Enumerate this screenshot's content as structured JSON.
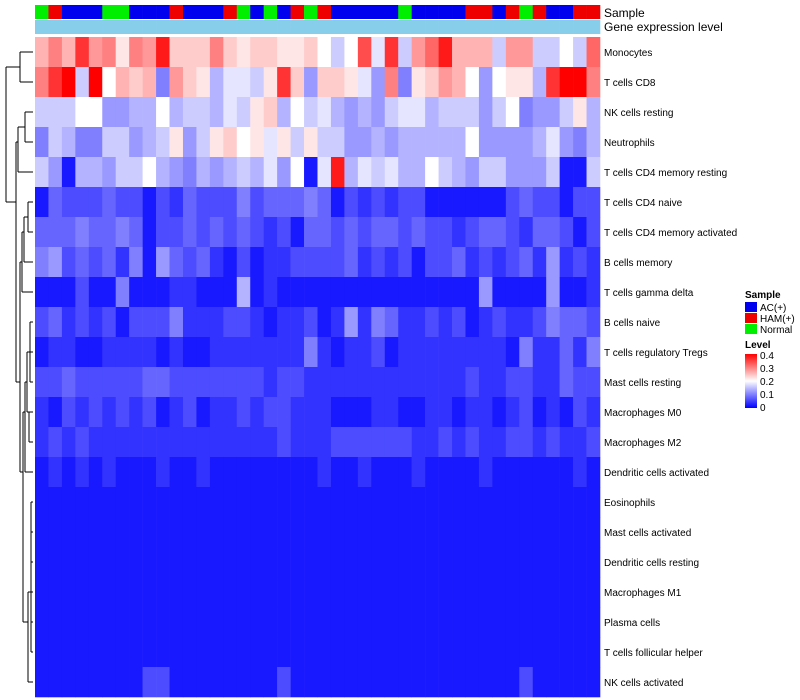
{
  "chart_data": {
    "type": "heatmap",
    "annotations": {
      "sample_label": "Sample",
      "gene_label": "Gene expression level"
    },
    "sample_groups": [
      "Normal",
      "HAM",
      "AC",
      "AC",
      "AC",
      "Normal",
      "Normal",
      "AC",
      "AC",
      "AC",
      "HAM",
      "AC",
      "AC",
      "AC",
      "HAM",
      "Normal",
      "AC",
      "Normal",
      "AC",
      "HAM",
      "Normal",
      "HAM",
      "AC",
      "AC",
      "AC",
      "AC",
      "AC",
      "Normal",
      "AC",
      "AC",
      "AC",
      "AC",
      "HAM",
      "HAM",
      "AC",
      "HAM",
      "Normal",
      "HAM",
      "AC",
      "AC",
      "HAM",
      "HAM"
    ],
    "gene_expression_level": [
      0.05,
      0.05,
      0.05,
      0.05,
      0.05,
      0.05,
      0.05,
      0.05,
      0.05,
      0.05,
      0.05,
      0.05,
      0.05,
      0.05,
      0.05,
      0.05,
      0.05,
      0.05,
      0.05,
      0.05,
      0.05,
      0.05,
      0.05,
      0.05,
      0.05,
      0.05,
      0.05,
      0.05,
      0.05,
      0.05,
      0.05,
      0.05,
      0.05,
      0.05,
      0.05,
      0.05,
      0.05,
      0.05,
      0.05,
      0.05,
      0.05,
      0.05
    ],
    "rows": [
      {
        "name": "Monocytes",
        "values": [
          0.26,
          0.3,
          0.26,
          0.36,
          0.28,
          0.3,
          0.22,
          0.3,
          0.28,
          0.38,
          0.24,
          0.24,
          0.24,
          0.3,
          0.24,
          0.22,
          0.24,
          0.24,
          0.22,
          0.22,
          0.24,
          0.2,
          0.16,
          0.2,
          0.34,
          0.18,
          0.36,
          0.16,
          0.28,
          0.32,
          0.38,
          0.26,
          0.26,
          0.26,
          0.16,
          0.28,
          0.28,
          0.16,
          0.16,
          0.2,
          0.16,
          0.32
        ]
      },
      {
        "name": "T cells CD8",
        "values": [
          0.3,
          0.36,
          0.4,
          0.16,
          0.4,
          0.2,
          0.26,
          0.24,
          0.26,
          0.1,
          0.28,
          0.24,
          0.22,
          0.14,
          0.18,
          0.18,
          0.16,
          0.22,
          0.36,
          0.24,
          0.12,
          0.24,
          0.24,
          0.22,
          0.18,
          0.12,
          0.3,
          0.1,
          0.22,
          0.24,
          0.28,
          0.26,
          0.2,
          0.12,
          0.2,
          0.22,
          0.22,
          0.14,
          0.36,
          0.4,
          0.4,
          0.3
        ]
      },
      {
        "name": "NK cells resting",
        "values": [
          0.16,
          0.16,
          0.16,
          0.2,
          0.2,
          0.12,
          0.12,
          0.14,
          0.14,
          0.2,
          0.14,
          0.16,
          0.16,
          0.14,
          0.18,
          0.16,
          0.22,
          0.24,
          0.14,
          0.2,
          0.16,
          0.18,
          0.14,
          0.12,
          0.14,
          0.12,
          0.16,
          0.18,
          0.18,
          0.14,
          0.16,
          0.16,
          0.16,
          0.12,
          0.16,
          0.2,
          0.1,
          0.12,
          0.12,
          0.16,
          0.22,
          0.14
        ]
      },
      {
        "name": "Neutrophils",
        "values": [
          0.1,
          0.16,
          0.14,
          0.1,
          0.1,
          0.16,
          0.16,
          0.12,
          0.14,
          0.16,
          0.22,
          0.12,
          0.16,
          0.22,
          0.24,
          0.2,
          0.22,
          0.18,
          0.22,
          0.16,
          0.22,
          0.16,
          0.16,
          0.12,
          0.12,
          0.14,
          0.12,
          0.14,
          0.14,
          0.14,
          0.14,
          0.14,
          0.2,
          0.12,
          0.12,
          0.12,
          0.12,
          0.14,
          0.18,
          0.12,
          0.1,
          0.14
        ]
      },
      {
        "name": "T cells CD4 memory resting",
        "values": [
          0.16,
          0.12,
          0.02,
          0.14,
          0.14,
          0.12,
          0.16,
          0.16,
          0.2,
          0.14,
          0.12,
          0.1,
          0.14,
          0.12,
          0.14,
          0.16,
          0.14,
          0.18,
          0.12,
          0.2,
          0.02,
          0.18,
          0.38,
          0.14,
          0.18,
          0.16,
          0.18,
          0.14,
          0.14,
          0.2,
          0.16,
          0.14,
          0.12,
          0.16,
          0.16,
          0.12,
          0.12,
          0.12,
          0.16,
          0.02,
          0.02,
          0.16
        ]
      },
      {
        "name": "T cells CD4 naive",
        "values": [
          0.02,
          0.08,
          0.06,
          0.06,
          0.06,
          0.08,
          0.06,
          0.06,
          0.02,
          0.06,
          0.04,
          0.08,
          0.06,
          0.06,
          0.06,
          0.1,
          0.06,
          0.08,
          0.08,
          0.08,
          0.1,
          0.08,
          0.02,
          0.06,
          0.04,
          0.06,
          0.04,
          0.06,
          0.06,
          0.02,
          0.02,
          0.02,
          0.02,
          0.02,
          0.02,
          0.06,
          0.08,
          0.06,
          0.06,
          0.02,
          0.06,
          0.06
        ]
      },
      {
        "name": "T cells CD4 memory activated",
        "values": [
          0.08,
          0.08,
          0.08,
          0.1,
          0.08,
          0.08,
          0.1,
          0.08,
          0.02,
          0.06,
          0.06,
          0.08,
          0.06,
          0.08,
          0.06,
          0.08,
          0.06,
          0.04,
          0.06,
          0.02,
          0.08,
          0.08,
          0.06,
          0.08,
          0.06,
          0.08,
          0.08,
          0.06,
          0.08,
          0.06,
          0.06,
          0.04,
          0.06,
          0.08,
          0.08,
          0.06,
          0.04,
          0.08,
          0.08,
          0.06,
          0.02,
          0.06
        ]
      },
      {
        "name": "B cells memory",
        "values": [
          0.1,
          0.12,
          0.06,
          0.08,
          0.06,
          0.08,
          0.04,
          0.1,
          0.02,
          0.12,
          0.08,
          0.06,
          0.08,
          0.04,
          0.02,
          0.06,
          0.02,
          0.04,
          0.04,
          0.06,
          0.06,
          0.06,
          0.06,
          0.08,
          0.04,
          0.06,
          0.04,
          0.06,
          0.02,
          0.06,
          0.06,
          0.08,
          0.04,
          0.06,
          0.04,
          0.06,
          0.08,
          0.04,
          0.12,
          0.04,
          0.06,
          0.04
        ]
      },
      {
        "name": "T cells gamma delta",
        "values": [
          0.02,
          0.02,
          0.02,
          0.06,
          0.02,
          0.02,
          0.1,
          0.02,
          0.02,
          0.02,
          0.04,
          0.04,
          0.02,
          0.02,
          0.02,
          0.14,
          0.02,
          0.04,
          0.02,
          0.02,
          0.02,
          0.02,
          0.02,
          0.02,
          0.02,
          0.02,
          0.02,
          0.02,
          0.02,
          0.02,
          0.02,
          0.02,
          0.02,
          0.12,
          0.02,
          0.02,
          0.02,
          0.02,
          0.12,
          0.02,
          0.02,
          0.04
        ]
      },
      {
        "name": "B cells naive",
        "values": [
          0.06,
          0.08,
          0.04,
          0.06,
          0.04,
          0.06,
          0.02,
          0.06,
          0.06,
          0.06,
          0.1,
          0.04,
          0.04,
          0.04,
          0.06,
          0.06,
          0.04,
          0.02,
          0.04,
          0.04,
          0.06,
          0.02,
          0.04,
          0.12,
          0.04,
          0.1,
          0.08,
          0.04,
          0.04,
          0.06,
          0.04,
          0.06,
          0.02,
          0.04,
          0.06,
          0.04,
          0.04,
          0.06,
          0.1,
          0.08,
          0.08,
          0.06
        ]
      },
      {
        "name": "T cells regulatory  Tregs",
        "values": [
          0.02,
          0.04,
          0.04,
          0.02,
          0.02,
          0.04,
          0.04,
          0.04,
          0.04,
          0.02,
          0.04,
          0.02,
          0.02,
          0.04,
          0.04,
          0.04,
          0.04,
          0.04,
          0.04,
          0.04,
          0.1,
          0.04,
          0.02,
          0.04,
          0.04,
          0.06,
          0.02,
          0.04,
          0.04,
          0.04,
          0.04,
          0.04,
          0.04,
          0.04,
          0.04,
          0.02,
          0.1,
          0.04,
          0.04,
          0.08,
          0.04,
          0.1
        ]
      },
      {
        "name": "Mast cells resting",
        "values": [
          0.06,
          0.06,
          0.08,
          0.06,
          0.06,
          0.06,
          0.06,
          0.06,
          0.08,
          0.08,
          0.06,
          0.06,
          0.06,
          0.06,
          0.06,
          0.06,
          0.06,
          0.04,
          0.06,
          0.06,
          0.04,
          0.04,
          0.04,
          0.04,
          0.04,
          0.04,
          0.04,
          0.04,
          0.04,
          0.04,
          0.04,
          0.04,
          0.06,
          0.04,
          0.04,
          0.06,
          0.06,
          0.04,
          0.04,
          0.08,
          0.06,
          0.06
        ]
      },
      {
        "name": "Macrophages M0",
        "values": [
          0.04,
          0.02,
          0.06,
          0.04,
          0.06,
          0.04,
          0.06,
          0.04,
          0.06,
          0.02,
          0.04,
          0.06,
          0.02,
          0.04,
          0.04,
          0.06,
          0.04,
          0.06,
          0.06,
          0.04,
          0.04,
          0.04,
          0.02,
          0.02,
          0.02,
          0.04,
          0.04,
          0.02,
          0.02,
          0.04,
          0.04,
          0.02,
          0.04,
          0.04,
          0.02,
          0.04,
          0.06,
          0.02,
          0.04,
          0.02,
          0.06,
          0.04
        ]
      },
      {
        "name": "Macrophages M2",
        "values": [
          0.04,
          0.06,
          0.04,
          0.06,
          0.04,
          0.04,
          0.04,
          0.04,
          0.04,
          0.04,
          0.04,
          0.04,
          0.04,
          0.04,
          0.04,
          0.04,
          0.04,
          0.04,
          0.06,
          0.04,
          0.04,
          0.04,
          0.06,
          0.06,
          0.06,
          0.06,
          0.06,
          0.06,
          0.04,
          0.04,
          0.06,
          0.04,
          0.06,
          0.04,
          0.04,
          0.06,
          0.06,
          0.04,
          0.06,
          0.04,
          0.04,
          0.06
        ]
      },
      {
        "name": "Dendritic cells activated",
        "values": [
          0.02,
          0.04,
          0.02,
          0.04,
          0.02,
          0.04,
          0.02,
          0.02,
          0.02,
          0.04,
          0.02,
          0.02,
          0.04,
          0.02,
          0.02,
          0.02,
          0.02,
          0.02,
          0.02,
          0.02,
          0.02,
          0.04,
          0.02,
          0.02,
          0.04,
          0.02,
          0.02,
          0.02,
          0.04,
          0.02,
          0.02,
          0.02,
          0.02,
          0.04,
          0.02,
          0.02,
          0.02,
          0.02,
          0.02,
          0.02,
          0.04,
          0.02
        ]
      },
      {
        "name": "Eosinophils",
        "values": [
          0.02,
          0.02,
          0.02,
          0.02,
          0.02,
          0.02,
          0.02,
          0.02,
          0.02,
          0.02,
          0.02,
          0.02,
          0.02,
          0.02,
          0.02,
          0.02,
          0.02,
          0.02,
          0.02,
          0.02,
          0.02,
          0.02,
          0.02,
          0.02,
          0.02,
          0.02,
          0.02,
          0.02,
          0.02,
          0.02,
          0.02,
          0.02,
          0.02,
          0.02,
          0.02,
          0.02,
          0.02,
          0.02,
          0.02,
          0.02,
          0.02,
          0.02
        ]
      },
      {
        "name": "Mast cells activated",
        "values": [
          0.02,
          0.02,
          0.02,
          0.02,
          0.02,
          0.02,
          0.02,
          0.02,
          0.02,
          0.02,
          0.02,
          0.02,
          0.02,
          0.02,
          0.02,
          0.02,
          0.02,
          0.02,
          0.02,
          0.02,
          0.02,
          0.02,
          0.02,
          0.02,
          0.02,
          0.02,
          0.02,
          0.02,
          0.02,
          0.02,
          0.02,
          0.02,
          0.02,
          0.02,
          0.02,
          0.02,
          0.02,
          0.02,
          0.02,
          0.02,
          0.02,
          0.02
        ]
      },
      {
        "name": "Dendritic cells resting",
        "values": [
          0.02,
          0.02,
          0.02,
          0.02,
          0.02,
          0.02,
          0.02,
          0.02,
          0.02,
          0.02,
          0.02,
          0.02,
          0.02,
          0.02,
          0.02,
          0.02,
          0.02,
          0.02,
          0.02,
          0.02,
          0.02,
          0.02,
          0.02,
          0.02,
          0.02,
          0.02,
          0.02,
          0.02,
          0.02,
          0.02,
          0.02,
          0.02,
          0.02,
          0.02,
          0.02,
          0.02,
          0.02,
          0.02,
          0.02,
          0.02,
          0.02,
          0.02
        ]
      },
      {
        "name": "Macrophages M1",
        "values": [
          0.02,
          0.02,
          0.02,
          0.02,
          0.02,
          0.02,
          0.02,
          0.02,
          0.02,
          0.02,
          0.02,
          0.02,
          0.02,
          0.02,
          0.02,
          0.02,
          0.02,
          0.02,
          0.02,
          0.02,
          0.02,
          0.02,
          0.02,
          0.02,
          0.02,
          0.02,
          0.02,
          0.02,
          0.02,
          0.02,
          0.02,
          0.02,
          0.02,
          0.02,
          0.02,
          0.02,
          0.02,
          0.02,
          0.02,
          0.02,
          0.02,
          0.02
        ]
      },
      {
        "name": "Plasma cells",
        "values": [
          0.02,
          0.02,
          0.02,
          0.02,
          0.02,
          0.02,
          0.02,
          0.02,
          0.02,
          0.02,
          0.02,
          0.02,
          0.02,
          0.02,
          0.02,
          0.02,
          0.02,
          0.02,
          0.02,
          0.02,
          0.02,
          0.02,
          0.02,
          0.02,
          0.02,
          0.02,
          0.02,
          0.02,
          0.02,
          0.02,
          0.02,
          0.02,
          0.02,
          0.02,
          0.02,
          0.02,
          0.02,
          0.02,
          0.02,
          0.02,
          0.02,
          0.02
        ]
      },
      {
        "name": "T cells follicular helper",
        "values": [
          0.02,
          0.02,
          0.02,
          0.02,
          0.02,
          0.02,
          0.02,
          0.02,
          0.02,
          0.02,
          0.02,
          0.02,
          0.02,
          0.02,
          0.02,
          0.02,
          0.02,
          0.02,
          0.02,
          0.02,
          0.02,
          0.02,
          0.02,
          0.02,
          0.02,
          0.02,
          0.02,
          0.02,
          0.02,
          0.02,
          0.02,
          0.02,
          0.02,
          0.02,
          0.02,
          0.02,
          0.02,
          0.02,
          0.02,
          0.02,
          0.02,
          0.02
        ]
      },
      {
        "name": "NK cells activated",
        "values": [
          0.02,
          0.02,
          0.02,
          0.02,
          0.02,
          0.02,
          0.02,
          0.02,
          0.06,
          0.06,
          0.02,
          0.02,
          0.02,
          0.02,
          0.02,
          0.02,
          0.02,
          0.02,
          0.06,
          0.02,
          0.02,
          0.02,
          0.02,
          0.02,
          0.02,
          0.02,
          0.02,
          0.02,
          0.02,
          0.02,
          0.02,
          0.02,
          0.02,
          0.02,
          0.02,
          0.02,
          0.06,
          0.02,
          0.02,
          0.02,
          0.02,
          0.02
        ]
      }
    ],
    "legend": {
      "sample_title": "Sample",
      "sample_entries": [
        {
          "key": "AC",
          "label": "AC(+)",
          "color": "#0000ee"
        },
        {
          "key": "HAM",
          "label": "HAM(+)",
          "color": "#ee0000"
        },
        {
          "key": "Normal",
          "label": "Normal",
          "color": "#00ee00"
        }
      ],
      "level_title": "Level",
      "level_ticks": [
        "0.4",
        "0.3",
        "0.2",
        "0.1",
        "0"
      ],
      "range": [
        0,
        0.4
      ]
    },
    "colors": {
      "low": "#0000ff",
      "mid": "#ffffff",
      "high": "#ff0000",
      "gene_bar": "#87ceeb"
    }
  }
}
